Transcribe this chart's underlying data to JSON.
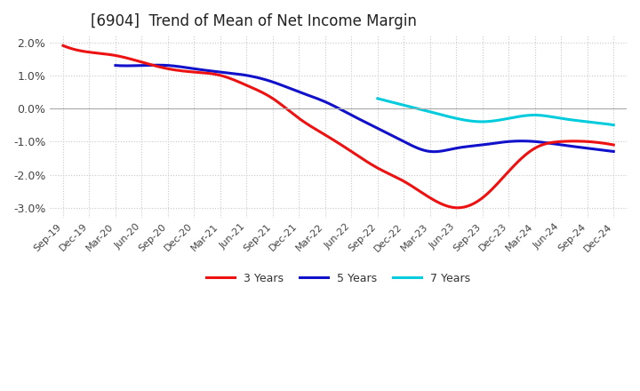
{
  "title": "[6904]  Trend of Mean of Net Income Margin",
  "ylim": [
    -0.033,
    0.022
  ],
  "yticks": [
    0.02,
    0.01,
    0.0,
    -0.01,
    -0.02,
    -0.03
  ],
  "yticklabels": [
    "2.0%",
    "1.0%",
    "0.0%",
    "-1.0%",
    "-2.0%",
    "-3.0%"
  ],
  "background_color": "#ffffff",
  "grid_color": "#c8c8c8",
  "line_colors": {
    "3 Years": "#ee1111",
    "5 Years": "#1111cc",
    "7 Years": "#00ccdd",
    "10 Years": "#008800"
  },
  "x_labels": [
    "Sep-19",
    "Dec-19",
    "Mar-20",
    "Jun-20",
    "Sep-20",
    "Dec-20",
    "Mar-21",
    "Jun-21",
    "Sep-21",
    "Dec-21",
    "Mar-22",
    "Jun-22",
    "Sep-22",
    "Dec-22",
    "Mar-23",
    "Jun-23",
    "Sep-23",
    "Dec-23",
    "Mar-24",
    "Jun-24",
    "Sep-24",
    "Dec-24"
  ],
  "series": {
    "3 Years": [
      0.019,
      0.017,
      0.016,
      0.014,
      0.012,
      0.011,
      0.01,
      0.007,
      0.003,
      -0.003,
      -0.008,
      -0.013,
      -0.018,
      -0.022,
      -0.027,
      -0.03,
      -0.027,
      -0.019,
      -0.012,
      -0.01,
      -0.01,
      -0.011
    ],
    "5 Years": [
      null,
      null,
      0.013,
      0.013,
      0.013,
      0.012,
      0.011,
      0.01,
      0.008,
      0.005,
      0.002,
      -0.002,
      -0.006,
      -0.01,
      -0.013,
      -0.012,
      -0.011,
      -0.01,
      -0.01,
      -0.011,
      -0.012,
      -0.013
    ],
    "7 Years": [
      null,
      null,
      null,
      null,
      null,
      null,
      null,
      null,
      null,
      null,
      null,
      null,
      0.003,
      0.001,
      -0.001,
      -0.003,
      -0.004,
      -0.003,
      -0.002,
      -0.003,
      -0.004,
      -0.005
    ],
    "10 Years": [
      null,
      null,
      null,
      null,
      null,
      null,
      null,
      null,
      null,
      null,
      null,
      null,
      null,
      null,
      null,
      null,
      null,
      null,
      null,
      null,
      null,
      null
    ]
  },
  "title_fontsize": 12,
  "tick_fontsize": 8,
  "legend_fontsize": 9
}
